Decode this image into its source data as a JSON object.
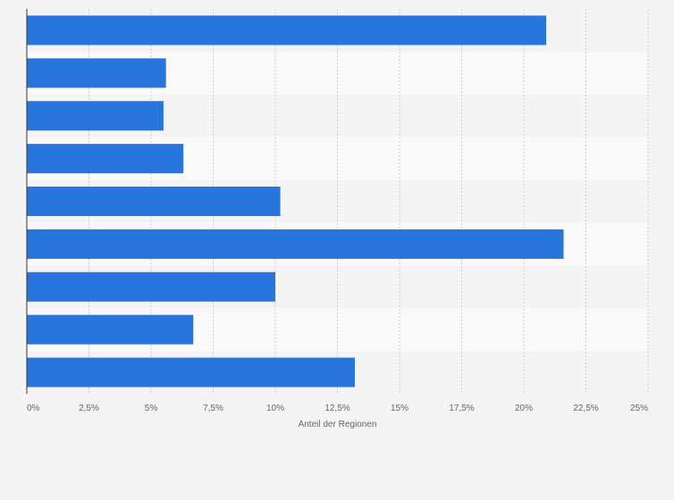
{
  "chart_data": {
    "type": "bar",
    "orientation": "horizontal",
    "categories": [
      "",
      "",
      "",
      "",
      "",
      "",
      "",
      "",
      ""
    ],
    "values": [
      20.9,
      5.6,
      5.5,
      6.3,
      10.2,
      21.6,
      10.0,
      6.7,
      13.2
    ],
    "xlabel": "Anteil der Regionen",
    "ylabel": "",
    "xlim": [
      0,
      25
    ],
    "xticks": [
      0,
      2.5,
      5,
      7.5,
      10,
      12.5,
      15,
      17.5,
      20,
      22.5,
      25
    ],
    "xtick_labels": [
      "0%",
      "2,5%",
      "5%",
      "7,5%",
      "10%",
      "12,5%",
      "15%",
      "17,5%",
      "20%",
      "22,5%",
      "25%"
    ],
    "grid": true,
    "legend": "none",
    "colors": {
      "bar": "#2876dd",
      "band_light": "#fafafa",
      "band_dark": "#f4f4f4",
      "grid": "#cccccc",
      "axis": "#333333",
      "text": "#666666"
    }
  }
}
